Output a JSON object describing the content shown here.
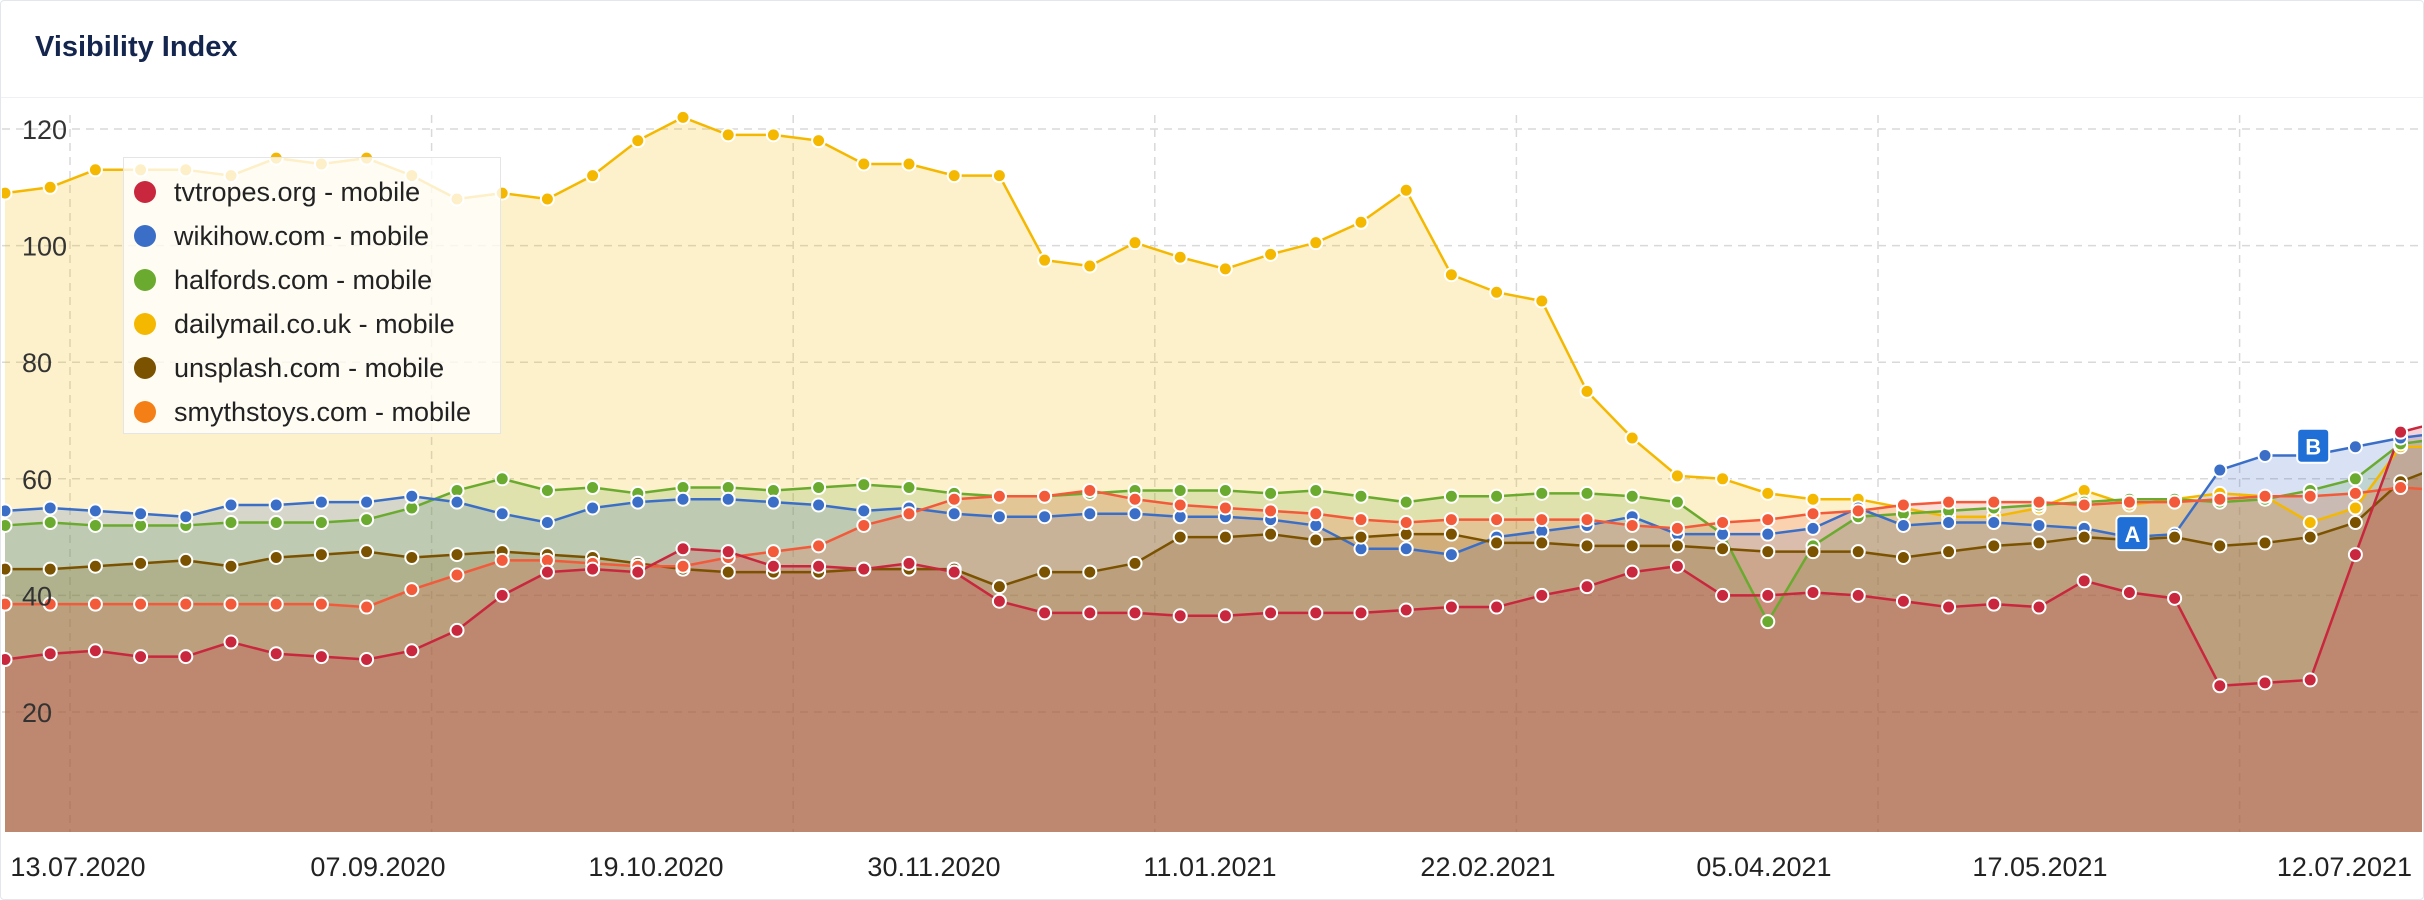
{
  "panel": {
    "title": "Visibility Index"
  },
  "chart_data": {
    "type": "area",
    "title": "Visibility Index",
    "x_tick_labels": [
      "13.07.2020",
      "07.09.2020",
      "19.10.2020",
      "30.11.2020",
      "11.01.2021",
      "22.02.2021",
      "05.04.2021",
      "17.05.2021",
      "12.07.2021"
    ],
    "y_ticks": [
      20,
      40,
      60,
      80,
      100,
      120
    ],
    "ylim": [
      -15,
      125
    ],
    "grid": true,
    "legend_position": "top-left",
    "annotations": [
      {
        "label": "A",
        "index": 47,
        "value": 50.5
      },
      {
        "label": "B",
        "index": 51,
        "value": 65.5
      }
    ],
    "series": [
      {
        "name": "dailymail.co.uk - mobile",
        "color": "#f5b800",
        "values": [
          109,
          110,
          113,
          113,
          113,
          112,
          115,
          114,
          115,
          112,
          108,
          109,
          108,
          112,
          118,
          122,
          119,
          119,
          118,
          114,
          114,
          112,
          112,
          97.5,
          96.5,
          100.5,
          98,
          96,
          98.5,
          100.5,
          104,
          109.5,
          95,
          92,
          90.5,
          75,
          67,
          60.5,
          60,
          57.5,
          56.5,
          56.5,
          55,
          53.5,
          53.5,
          55,
          58,
          55.5,
          56.5,
          57.5,
          57,
          52.5,
          55,
          65.5,
          65.5
        ]
      },
      {
        "name": "halfords.com - mobile",
        "color": "#6aaa2e",
        "values": [
          52,
          52.5,
          52,
          52,
          52,
          52.5,
          52.5,
          52.5,
          53,
          55,
          58,
          60,
          58,
          58.5,
          57.5,
          58.5,
          58.5,
          58,
          58.5,
          59,
          58.5,
          57.5,
          57,
          57,
          57.5,
          58,
          58,
          58,
          57.5,
          58,
          57,
          56,
          57,
          57,
          57.5,
          57.5,
          57,
          56,
          50.5,
          35.5,
          48.5,
          53.5,
          54,
          54.5,
          55,
          55.5,
          56,
          56.5,
          56.5,
          56,
          56.5,
          58,
          60,
          66,
          67
        ]
      },
      {
        "name": "wikihow.com - mobile",
        "color": "#3b6fc7",
        "values": [
          54.5,
          55,
          54.5,
          54,
          53.5,
          55.5,
          55.5,
          56,
          56,
          57,
          56,
          54,
          52.5,
          55,
          56,
          56.5,
          56.5,
          56,
          55.5,
          54.5,
          55,
          54,
          53.5,
          53.5,
          54,
          54,
          53.5,
          53.5,
          53,
          52,
          48,
          48,
          47,
          50,
          51,
          52,
          53.5,
          50.5,
          50.5,
          50.5,
          51.5,
          55,
          52,
          52.5,
          52.5,
          52,
          51.5,
          50,
          50.5,
          61.5,
          64,
          64,
          65.5,
          67,
          68
        ]
      },
      {
        "name": "unsplash.com - mobile",
        "color": "#7a5200",
        "values": [
          44.5,
          44.5,
          45,
          45.5,
          46,
          45,
          46.5,
          47,
          47.5,
          46.5,
          47,
          47.5,
          47,
          46.5,
          45.5,
          44.5,
          44,
          44,
          44,
          44.5,
          44.5,
          44.5,
          41.5,
          44,
          44,
          45.5,
          50,
          50,
          50.5,
          49.5,
          50,
          50.5,
          50.5,
          49,
          49,
          48.5,
          48.5,
          48.5,
          48,
          47.5,
          47.5,
          47.5,
          46.5,
          47.5,
          48.5,
          49,
          50,
          49.5,
          50,
          48.5,
          49,
          50,
          52.5,
          59.5,
          62.5
        ]
      },
      {
        "name": "smythstoys.com - mobile",
        "color": "#f25a3a",
        "values": [
          38.5,
          38.5,
          38.5,
          38.5,
          38.5,
          38.5,
          38.5,
          38.5,
          38,
          41,
          43.5,
          46,
          46,
          45.5,
          45,
          45,
          46.5,
          47.5,
          48.5,
          52,
          54,
          56.5,
          57,
          57,
          58,
          56.5,
          55.5,
          55,
          54.5,
          54,
          53,
          52.5,
          53,
          53,
          53,
          53,
          52,
          51.5,
          52.5,
          53,
          54,
          54.5,
          55.5,
          56,
          56,
          56,
          55.5,
          56,
          56,
          56.5,
          57,
          57,
          57.5,
          58.5,
          58
        ]
      },
      {
        "name": "tvtropes.org - mobile",
        "color": "#c8273d",
        "values": [
          29,
          30,
          30.5,
          29.5,
          29.5,
          32,
          30,
          29.5,
          29,
          30.5,
          34,
          40,
          44,
          44.5,
          44,
          48,
          47.5,
          45,
          45,
          44.5,
          45.5,
          44,
          39,
          37,
          37,
          37,
          36.5,
          36.5,
          37,
          37,
          37,
          37.5,
          38,
          38,
          40,
          41.5,
          44,
          45,
          40,
          40,
          40.5,
          40,
          39,
          38,
          38.5,
          38,
          42.5,
          40.5,
          39.5,
          24.5,
          25,
          25.5,
          47,
          68,
          70
        ]
      }
    ]
  }
}
